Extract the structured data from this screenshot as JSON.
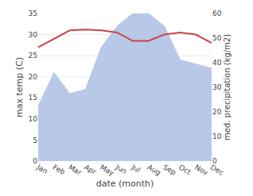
{
  "chart_data": {
    "type": "line",
    "categories": [
      "Jan",
      "Feb",
      "Mar",
      "Apr",
      "May",
      "Jun",
      "Jul",
      "Aug",
      "Sep",
      "Oct",
      "Nov",
      "Dec"
    ],
    "series": [
      {
        "type": "area",
        "color": "#b8c8e8",
        "values": [
          13,
          21,
          16,
          17,
          27,
          32,
          35,
          35,
          32,
          24,
          23,
          22
        ]
      },
      {
        "type": "line",
        "color": "#cc4444",
        "values": [
          27,
          29,
          31,
          31.2,
          31,
          30.5,
          28.5,
          28.5,
          30,
          30.5,
          30,
          28
        ]
      }
    ],
    "x_label": "date (month)",
    "y_label": "max temp (C)",
    "y2_label": "med. precipitation (kg/m2)",
    "ylim": [
      0,
      35
    ],
    "yticks": [
      0,
      5,
      10,
      15,
      20,
      25,
      30,
      35
    ],
    "y2lim": [
      0,
      60
    ],
    "y2ticks": [
      0,
      10,
      20,
      30,
      40,
      50,
      60
    ],
    "grid": true
  }
}
